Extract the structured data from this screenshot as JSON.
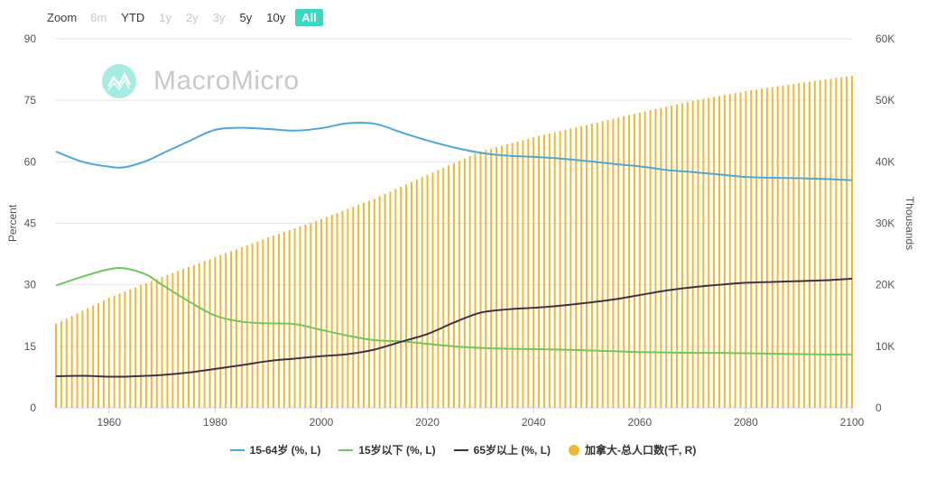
{
  "zoom": {
    "label": "Zoom",
    "buttons": [
      {
        "label": "6m",
        "state": "disabled"
      },
      {
        "label": "YTD",
        "state": "normal"
      },
      {
        "label": "1y",
        "state": "disabled"
      },
      {
        "label": "2y",
        "state": "disabled"
      },
      {
        "label": "3y",
        "state": "disabled"
      },
      {
        "label": "5y",
        "state": "normal"
      },
      {
        "label": "10y",
        "state": "normal"
      },
      {
        "label": "All",
        "state": "active"
      }
    ]
  },
  "watermark": {
    "text": "MacroMicro"
  },
  "colors": {
    "working_age": "#4aa9d6",
    "under15": "#6cc95a",
    "over65": "#3a3540",
    "population": "#efb83a",
    "accent": "#3ed6c1"
  },
  "chart_data": {
    "type": "line+bar",
    "x_range": [
      1950,
      2100
    ],
    "x_ticks": [
      1960,
      1980,
      2000,
      2020,
      2040,
      2060,
      2080,
      2100
    ],
    "left_axis": {
      "label": "Percent",
      "range": [
        0,
        90
      ],
      "ticks": [
        "0",
        "15",
        "30",
        "45",
        "60",
        "75",
        "90"
      ]
    },
    "right_axis": {
      "label": "Thousands",
      "range": [
        0,
        60000
      ],
      "ticks": [
        "0",
        "10K",
        "20K",
        "30K",
        "40K",
        "50K",
        "60K"
      ]
    },
    "grid": true,
    "legend_placement": "bottom",
    "series": [
      {
        "name": "15-64岁 (%, L)",
        "type": "line",
        "axis": "left",
        "color_key": "working_age",
        "x": [
          1950,
          1955,
          1960,
          1963,
          1967,
          1970,
          1975,
          1980,
          1985,
          1990,
          1995,
          2000,
          2005,
          2010,
          2015,
          2020,
          2025,
          2030,
          2035,
          2040,
          2045,
          2050,
          2055,
          2060,
          2065,
          2070,
          2075,
          2080,
          2085,
          2090,
          2095,
          2100
        ],
        "values": [
          62.5,
          60.0,
          58.8,
          58.7,
          60.2,
          62.0,
          65.0,
          67.8,
          68.3,
          68.0,
          67.6,
          68.2,
          69.4,
          69.3,
          67.2,
          65.2,
          63.5,
          62.2,
          61.5,
          61.2,
          60.8,
          60.2,
          59.5,
          58.9,
          58.0,
          57.5,
          56.9,
          56.3,
          56.1,
          56.0,
          55.8,
          55.5
        ]
      },
      {
        "name": "15岁以下 (%, L)",
        "type": "line",
        "axis": "left",
        "color_key": "under15",
        "x": [
          1950,
          1955,
          1960,
          1963,
          1967,
          1970,
          1975,
          1980,
          1985,
          1990,
          1995,
          2000,
          2005,
          2010,
          2015,
          2020,
          2025,
          2030,
          2035,
          2040,
          2045,
          2050,
          2055,
          2060,
          2065,
          2070,
          2075,
          2080,
          2085,
          2090,
          2095,
          2100
        ],
        "values": [
          29.8,
          32.0,
          33.8,
          34.0,
          32.5,
          30.0,
          26.0,
          22.5,
          21.0,
          20.6,
          20.4,
          19.0,
          17.6,
          16.5,
          16.2,
          15.6,
          15.0,
          14.6,
          14.4,
          14.3,
          14.2,
          14.0,
          13.8,
          13.6,
          13.5,
          13.4,
          13.4,
          13.3,
          13.2,
          13.1,
          13.0,
          13.0
        ]
      },
      {
        "name": "65岁以上 (%, L)",
        "type": "line",
        "axis": "left",
        "color_key": "over65",
        "x": [
          1950,
          1955,
          1960,
          1963,
          1967,
          1970,
          1975,
          1980,
          1985,
          1990,
          1995,
          2000,
          2005,
          2010,
          2015,
          2020,
          2025,
          2030,
          2035,
          2040,
          2045,
          2050,
          2055,
          2060,
          2065,
          2070,
          2075,
          2080,
          2085,
          2090,
          2095,
          2100
        ],
        "values": [
          7.7,
          7.8,
          7.6,
          7.6,
          7.8,
          8.0,
          8.6,
          9.5,
          10.4,
          11.4,
          12.0,
          12.6,
          13.1,
          14.2,
          16.1,
          18.0,
          20.8,
          23.2,
          24.0,
          24.4,
          24.9,
          25.6,
          26.4,
          27.5,
          28.6,
          29.4,
          30.0,
          30.5,
          30.7,
          30.9,
          31.1,
          31.5
        ]
      },
      {
        "name": "加拿大-总人口数(千, R)",
        "type": "bar",
        "axis": "right",
        "color_key": "population",
        "anchor_years": [
          1950,
          1960,
          1970,
          1980,
          1990,
          2000,
          2010,
          2020,
          2030,
          2040,
          2050,
          2060,
          2070,
          2080,
          2090,
          2100
        ],
        "anchor_values": [
          13700,
          17900,
          21300,
          24500,
          27700,
          30700,
          34000,
          37900,
          41700,
          44000,
          46000,
          48000,
          49900,
          51500,
          52800,
          54000
        ]
      }
    ]
  }
}
